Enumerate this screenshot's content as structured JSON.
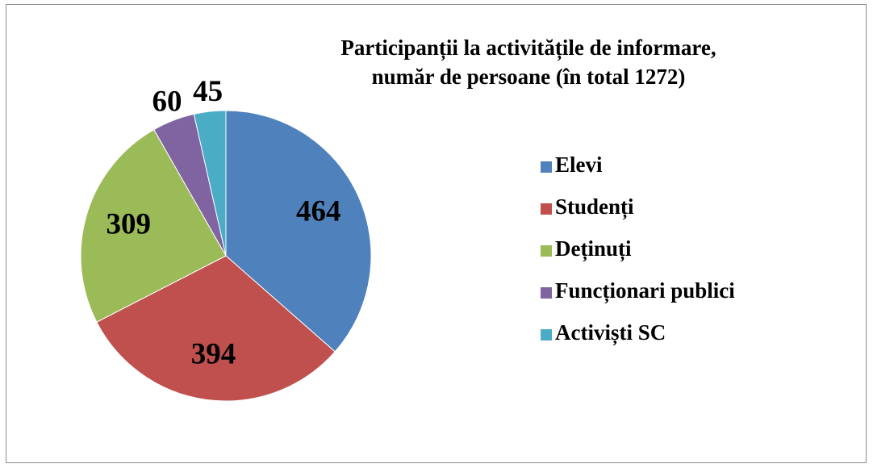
{
  "chart_data": {
    "type": "pie",
    "title": [
      "Participanții la activitățile de informare,",
      "număr de persoane  (în total 1272)"
    ],
    "categories": [
      "Elevi",
      "Studenți",
      "Deținuți",
      "Funcționari publici",
      "Activiști SC"
    ],
    "values": [
      464,
      394,
      309,
      60,
      45
    ],
    "colors": [
      "#4f81bd",
      "#c0504d",
      "#9bbb59",
      "#8064a2",
      "#4bacc6"
    ],
    "legend": "right"
  }
}
